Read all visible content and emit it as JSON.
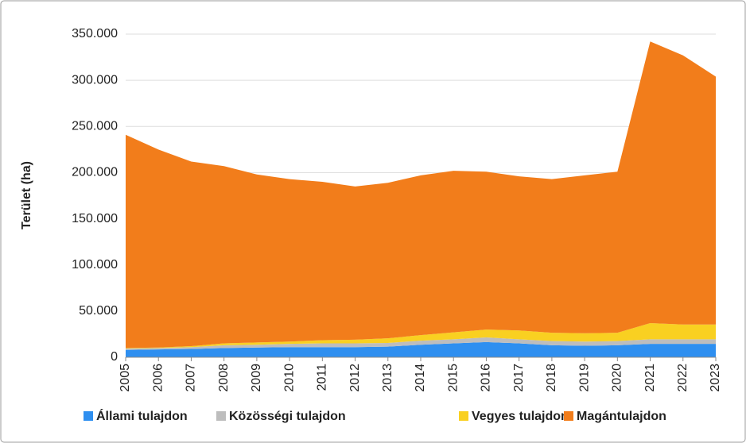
{
  "chart_data": {
    "type": "area",
    "stacked": true,
    "y_label": "Terület (ha)",
    "categories": [
      "2005",
      "2006",
      "2007",
      "2008",
      "2009",
      "2010",
      "2011",
      "2012",
      "2013",
      "2014",
      "2015",
      "2016",
      "2017",
      "2018",
      "2019",
      "2020",
      "2021",
      "2022",
      "2023"
    ],
    "series": [
      {
        "name": "Állami tulajdon",
        "color": "#2e8ff0",
        "values": [
          8000,
          8500,
          9000,
          10000,
          10500,
          11000,
          11000,
          11000,
          11500,
          13500,
          15000,
          16500,
          15000,
          13000,
          12500,
          13000,
          14500,
          14500,
          14500
        ]
      },
      {
        "name": "Közösségi tulajdon",
        "color": "#bdbdbd",
        "values": [
          1500,
          1500,
          2000,
          3000,
          3000,
          3500,
          4000,
          4000,
          4000,
          4500,
          4500,
          5000,
          4500,
          4500,
          4500,
          4500,
          5000,
          5000,
          5000
        ]
      },
      {
        "name": "Vegyes tulajdon",
        "color": "#f9d021",
        "values": [
          500,
          500,
          1000,
          2000,
          2500,
          2500,
          3500,
          4000,
          5000,
          6000,
          7500,
          8500,
          9500,
          9000,
          9000,
          9000,
          17500,
          16000,
          16000
        ]
      },
      {
        "name": "Magántulajdon",
        "color": "#f27d1b",
        "values": [
          231000,
          214500,
          200000,
          192000,
          182000,
          176000,
          171500,
          166000,
          168500,
          173000,
          175000,
          171000,
          167000,
          166500,
          171000,
          174500,
          305000,
          291500,
          268500
        ]
      }
    ],
    "ylim": [
      0,
      350000
    ],
    "yticks": [
      0,
      {
        "value": 50000,
        "label": "50.000"
      },
      {
        "value": 100000,
        "label": "100.000"
      },
      {
        "value": 150000,
        "label": "150.000"
      },
      {
        "value": 200000,
        "label": "200.000"
      },
      {
        "value": 250000,
        "label": "250.000"
      },
      {
        "value": 300000,
        "label": "300.000"
      },
      {
        "value": 350000,
        "label": "350.000"
      }
    ],
    "grid": true,
    "legend": "bottom"
  }
}
